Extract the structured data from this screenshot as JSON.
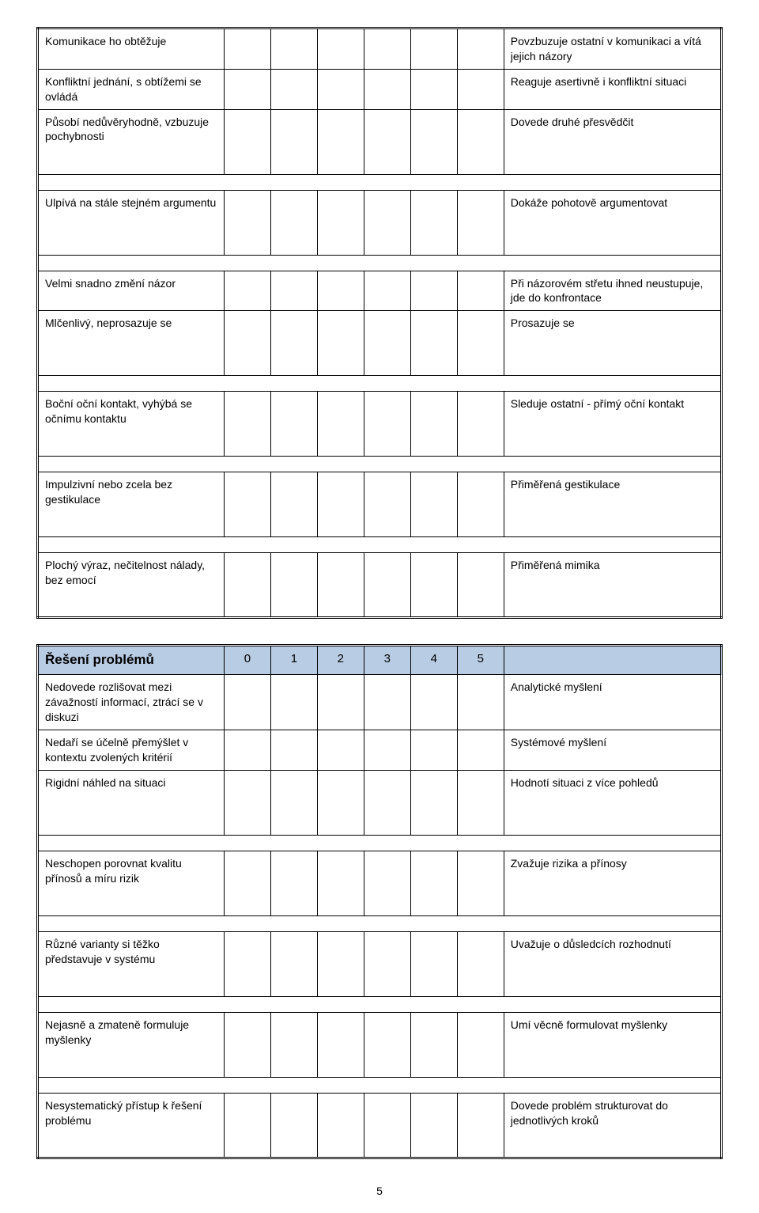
{
  "table1": {
    "rows": [
      {
        "left": "Komunikace ho obtěžuje",
        "right": "Povzbuzuje ostatní v komunikaci a vítá jejich názory"
      },
      {
        "left": "Konfliktní jednání, s obtížemi se ovládá",
        "right": " Reaguje asertivně i konfliktní situaci"
      },
      {
        "left": "Působí nedůvěryhodně, vzbuzuje pochybnosti",
        "right": "Dovede druhé přesvědčit"
      }
    ],
    "rows2": [
      {
        "left": "Ulpívá na stále stejném argumentu",
        "right": "Dokáže pohotově argumentovat"
      }
    ],
    "rows3": [
      {
        "left": "Velmi snadno změní názor",
        "right": "Při názorovém střetu ihned neustupuje, jde do konfrontace"
      },
      {
        "left": "Mlčenlivý, neprosazuje se",
        "right": "Prosazuje se"
      }
    ],
    "rows4": [
      {
        "left": "Boční oční kontakt, vyhýbá se očnímu kontaktu",
        "right": "Sleduje ostatní - přímý oční kontakt"
      }
    ],
    "rows5": [
      {
        "left": "Impulzivní nebo zcela bez gestikulace",
        "right": "Přiměřená gestikulace"
      }
    ],
    "rows6": [
      {
        "left": "Plochý výraz, nečitelnost nálady, bez emocí",
        "right": "Přiměřená mimika"
      }
    ]
  },
  "table2": {
    "header": {
      "title": "Řešení problémů",
      "cols": [
        "0",
        "1",
        "2",
        "3",
        "4",
        "5"
      ]
    },
    "rowsA": [
      {
        "left": "Nedovede rozlišovat mezi závažností informací, ztrácí se v diskuzi",
        "right": "Analytické myšlení"
      },
      {
        "left": "Nedaří se účelně přemýšlet v kontextu zvolených kritérií",
        "right": "Systémové myšlení"
      },
      {
        "left": "Rigidní náhled na situaci",
        "right": "Hodnotí situaci z více pohledů"
      }
    ],
    "rowsB": [
      {
        "left": "Neschopen porovnat kvalitu přínosů a míru rizik",
        "right": "Zvažuje rizika a přínosy"
      }
    ],
    "rowsC": [
      {
        "left": "Různé varianty si těžko představuje v systému",
        "right": "Uvažuje o důsledcích rozhodnutí"
      }
    ],
    "rowsD": [
      {
        "left": "Nejasně a zmateně formuluje myšlenky",
        "right": "Umí věcně formulovat myšlenky"
      }
    ],
    "rowsE": [
      {
        "left": "Nesystematický přístup k řešení problému",
        "right": "Dovede problém strukturovat do jednotlivých kroků"
      }
    ]
  },
  "page_number": "5"
}
